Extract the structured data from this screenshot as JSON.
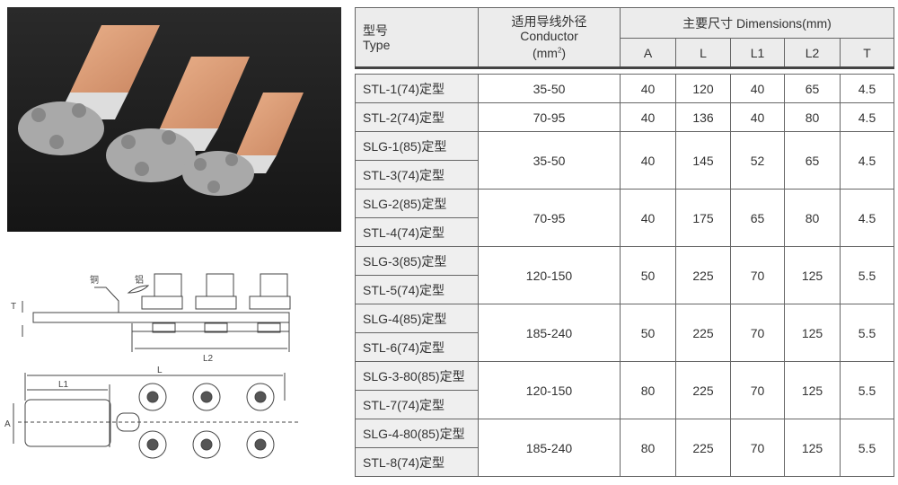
{
  "drawing": {
    "label_copper": "铜",
    "label_aluminum": "铝",
    "dim_T": "T",
    "dim_L2": "L2",
    "dim_L": "L",
    "dim_L1": "L1",
    "dim_A": "A"
  },
  "table": {
    "header": {
      "type_cn": "型号",
      "type_en": "Type",
      "conductor_cn": "适用导线外径",
      "conductor_en": "Conductor",
      "conductor_unit": "(mm",
      "conductor_sup": "2",
      "conductor_close": ")",
      "dimensions": "主要尺寸 Dimensions(mm)",
      "cols": [
        "A",
        "L",
        "L1",
        "L2",
        "T"
      ]
    },
    "groups": [
      {
        "types": [
          "STL-1(74)定型"
        ],
        "conductor": "35-50",
        "A": "40",
        "L": "120",
        "L1": "40",
        "L2": "65",
        "T": "4.5"
      },
      {
        "types": [
          "STL-2(74)定型"
        ],
        "conductor": "70-95",
        "A": "40",
        "L": "136",
        "L1": "40",
        "L2": "80",
        "T": "4.5"
      },
      {
        "types": [
          "SLG-1(85)定型",
          "STL-3(74)定型"
        ],
        "conductor": "35-50",
        "A": "40",
        "L": "145",
        "L1": "52",
        "L2": "65",
        "T": "4.5"
      },
      {
        "types": [
          "SLG-2(85)定型",
          "STL-4(74)定型"
        ],
        "conductor": "70-95",
        "A": "40",
        "L": "175",
        "L1": "65",
        "L2": "80",
        "T": "4.5"
      },
      {
        "types": [
          "SLG-3(85)定型",
          "STL-5(74)定型"
        ],
        "conductor": "120-150",
        "A": "50",
        "L": "225",
        "L1": "70",
        "L2": "125",
        "T": "5.5"
      },
      {
        "types": [
          "SLG-4(85)定型",
          "STL-6(74)定型"
        ],
        "conductor": "185-240",
        "A": "50",
        "L": "225",
        "L1": "70",
        "L2": "125",
        "T": "5.5"
      },
      {
        "types": [
          "SLG-3-80(85)定型",
          "STL-7(74)定型"
        ],
        "conductor": "120-150",
        "A": "80",
        "L": "225",
        "L1": "70",
        "L2": "125",
        "T": "5.5"
      },
      {
        "types": [
          "SLG-4-80(85)定型",
          "STL-8(74)定型"
        ],
        "conductor": "185-240",
        "A": "80",
        "L": "225",
        "L1": "70",
        "L2": "125",
        "T": "5.5"
      }
    ]
  }
}
